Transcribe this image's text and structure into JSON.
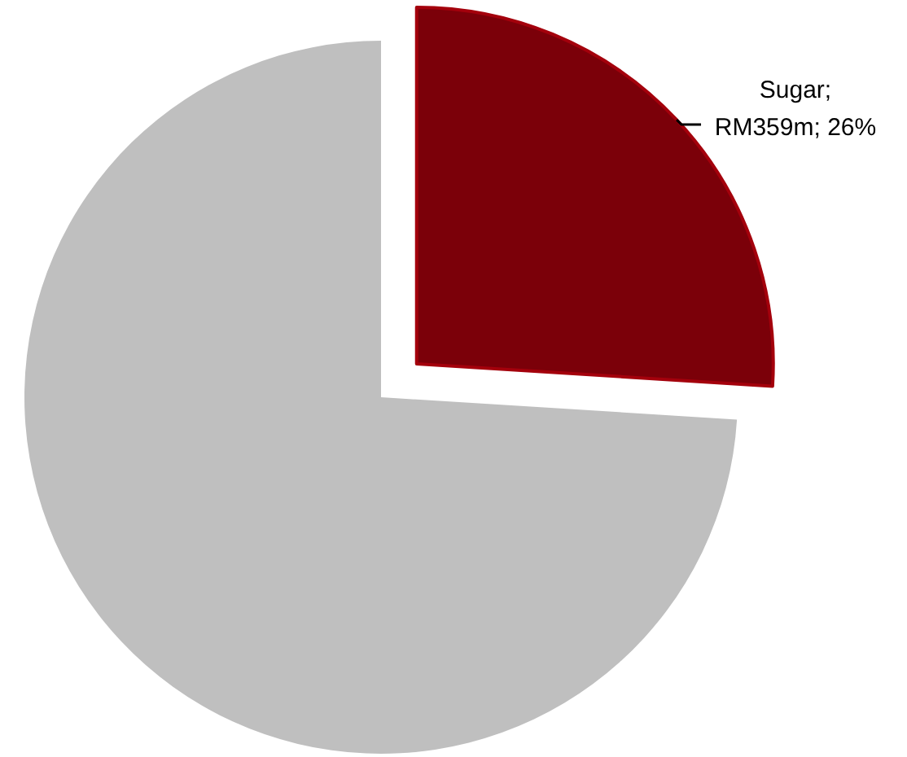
{
  "chart_data": {
    "type": "pie",
    "categories": [
      null,
      null
    ],
    "values": [
      26,
      74
    ],
    "colors": [
      "#7b0009",
      "#bfbfbf"
    ],
    "value_labels": [
      "Sugar; RM359m; 26%",
      null
    ]
  }
}
